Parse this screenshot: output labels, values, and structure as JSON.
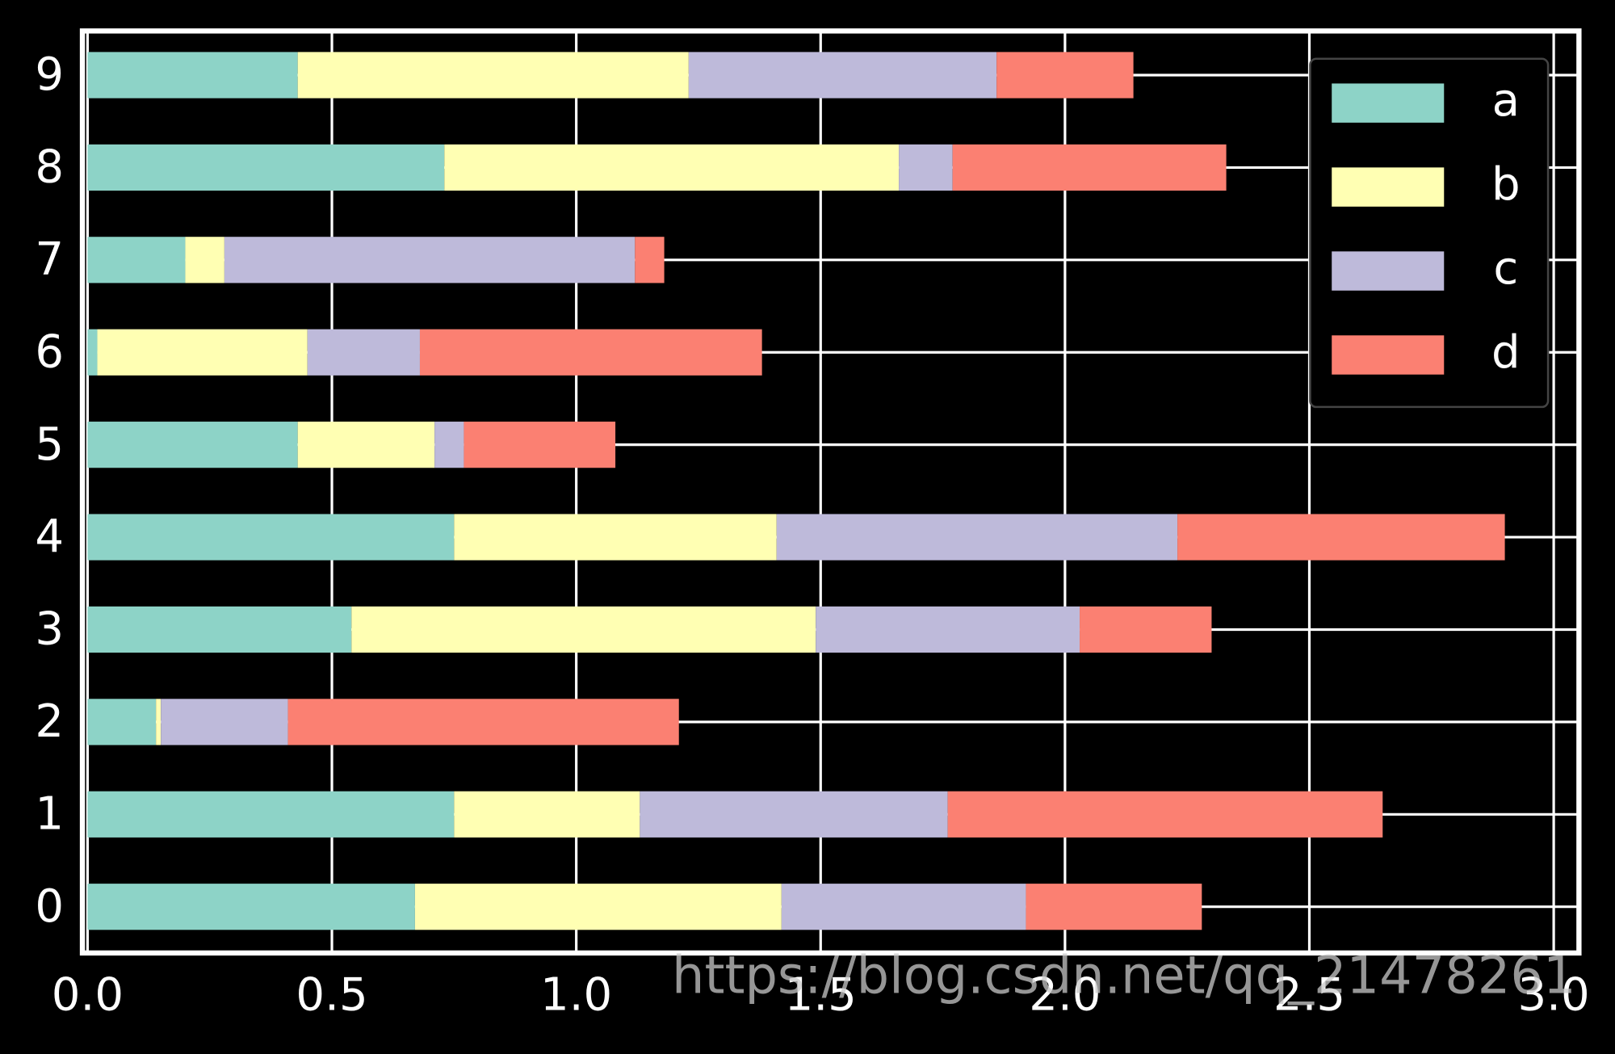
{
  "chart_data": {
    "type": "stacked-barh",
    "categories": [
      "0",
      "1",
      "2",
      "3",
      "4",
      "5",
      "6",
      "7",
      "8",
      "9"
    ],
    "series": [
      {
        "name": "a",
        "color": "#8dd3c7",
        "values": [
          0.67,
          0.75,
          0.14,
          0.54,
          0.75,
          0.43,
          0.02,
          0.2,
          0.73,
          0.43
        ]
      },
      {
        "name": "b",
        "color": "#ffffb3",
        "values": [
          0.75,
          0.38,
          0.01,
          0.95,
          0.66,
          0.28,
          0.43,
          0.08,
          0.93,
          0.8
        ]
      },
      {
        "name": "c",
        "color": "#bebada",
        "values": [
          0.5,
          0.63,
          0.26,
          0.54,
          0.82,
          0.06,
          0.23,
          0.84,
          0.11,
          0.63
        ]
      },
      {
        "name": "d",
        "color": "#fb8072",
        "values": [
          0.36,
          0.89,
          0.8,
          0.27,
          0.67,
          0.31,
          0.7,
          0.06,
          0.56,
          0.28
        ]
      }
    ],
    "xlim": [
      0,
      3.05
    ],
    "xticks": [
      {
        "value": 0,
        "label": "0.0"
      },
      0.5,
      {
        "value": 1,
        "label": "1.0"
      },
      1.5,
      {
        "value": 2,
        "label": "2.0"
      },
      2.5,
      {
        "value": 3,
        "label": "3.0"
      }
    ],
    "grid": true,
    "legend": "upper right",
    "watermark": "https://blog.csdn.net/qq_21478261"
  }
}
